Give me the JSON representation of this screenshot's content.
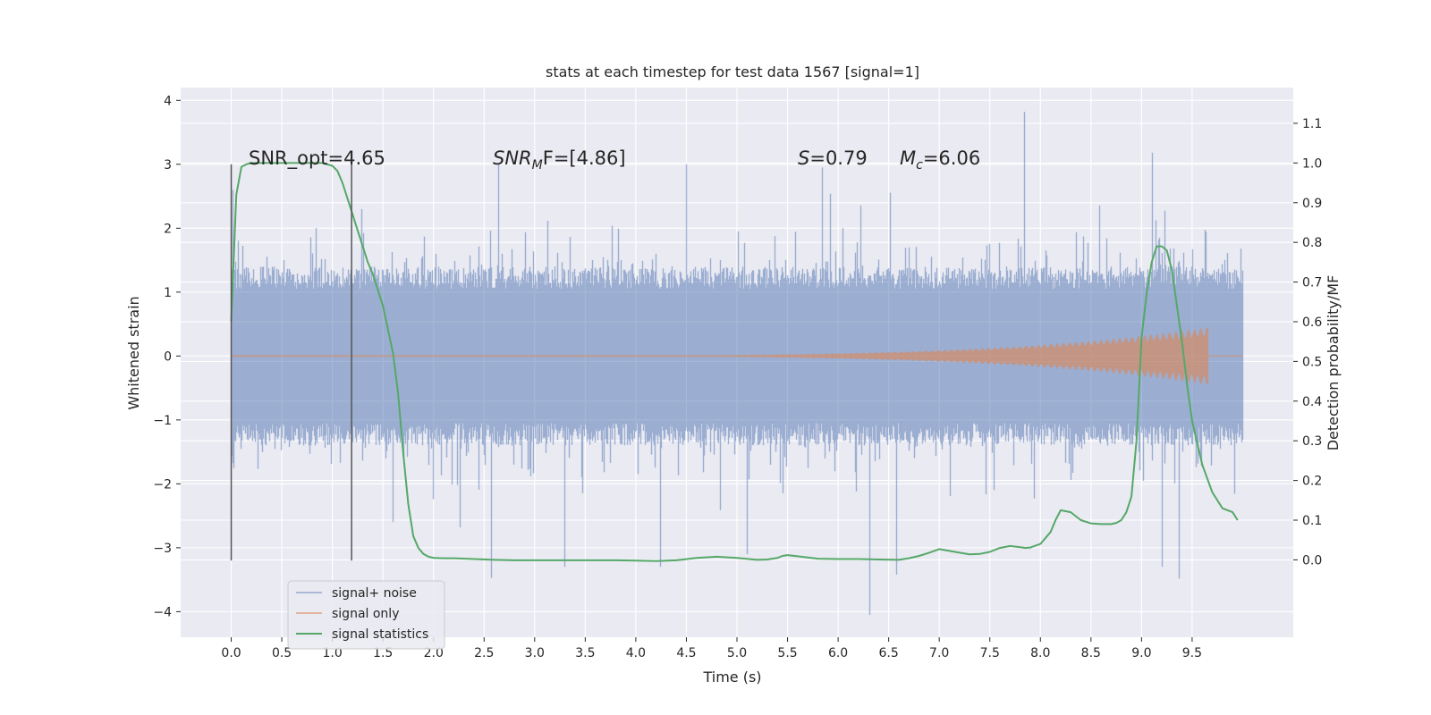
{
  "chart_data": {
    "type": "line",
    "title": "stats at each timestep for test data 1567 [signal=1]",
    "xlabel": "Time (s)",
    "ylabel": "Whitened strain",
    "y2label": "Detection probability/MF",
    "xlim": [
      -0.5,
      10.5
    ],
    "ylim": [
      -4.4,
      4.2
    ],
    "y2lim": [
      -0.195,
      1.19
    ],
    "xticks": [
      "0.0",
      "0.5",
      "1.0",
      "1.5",
      "2.0",
      "2.5",
      "3.0",
      "3.5",
      "4.0",
      "4.5",
      "5.0",
      "5.5",
      "6.0",
      "6.5",
      "7.0",
      "7.5",
      "8.0",
      "8.5",
      "9.0",
      "9.5"
    ],
    "yticks": [
      "4",
      "3",
      "2",
      "1",
      "0",
      "−1",
      "−2",
      "−3",
      "−4"
    ],
    "y2ticks": [
      "1.1",
      "1.0",
      "0.9",
      "0.8",
      "0.7",
      "0.6",
      "0.5",
      "0.4",
      "0.3",
      "0.2",
      "0.1",
      "0.0"
    ],
    "grid": true,
    "legend_placement": "lower-left",
    "annotations": {
      "snr_opt": "SNR_opt=4.65",
      "snr_mf_main": "SNR",
      "snr_mf_sub": "M",
      "snr_mf_rest": "F=[4.86]",
      "s_label": "S",
      "s_value": "=0.79",
      "mc_label": "M",
      "mc_sub": "c",
      "mc_value": "=6.06"
    },
    "vertical_lines": [
      0.0,
      1.19
    ],
    "series": [
      {
        "name": "signal+ noise",
        "color": "#4c72b0",
        "kind": "noise",
        "x_range": [
          0.0,
          10.0
        ],
        "typical_abs": 1.15,
        "notable_peaks": [
          [
            0.01,
            2.6
          ],
          [
            1.29,
            2.3
          ],
          [
            2.64,
            3.0
          ],
          [
            4.5,
            3.0
          ],
          [
            5.84,
            2.95
          ],
          [
            7.84,
            3.82
          ],
          [
            9.1,
            3.18
          ],
          [
            1.6,
            -2.6
          ],
          [
            2.57,
            -3.47
          ],
          [
            3.29,
            -3.3
          ],
          [
            4.24,
            -3.3
          ],
          [
            5.1,
            -3.1
          ],
          [
            6.31,
            -4.05
          ],
          [
            6.57,
            -3.42
          ],
          [
            9.2,
            -3.3
          ],
          [
            9.37,
            -3.48
          ]
        ]
      },
      {
        "name": "signal only",
        "color": "#dd8452",
        "kind": "chirp",
        "x_range": [
          0.0,
          9.65
        ],
        "peak_amplitude": 0.45
      },
      {
        "name": "signal statistics",
        "color": "#55a868",
        "kind": "line",
        "axis": "right",
        "x": [
          0.0,
          0.05,
          0.1,
          0.15,
          0.2,
          0.3,
          0.4,
          0.5,
          0.6,
          0.7,
          0.8,
          0.9,
          1.0,
          1.05,
          1.1,
          1.15,
          1.2,
          1.25,
          1.3,
          1.35,
          1.4,
          1.5,
          1.6,
          1.65,
          1.7,
          1.75,
          1.8,
          1.85,
          1.9,
          1.95,
          2.0,
          2.1,
          2.2,
          2.4,
          2.6,
          2.8,
          3.0,
          3.2,
          3.4,
          3.6,
          3.8,
          4.0,
          4.2,
          4.4,
          4.6,
          4.8,
          5.0,
          5.2,
          5.3,
          5.4,
          5.45,
          5.5,
          5.6,
          5.8,
          6.0,
          6.2,
          6.4,
          6.6,
          6.7,
          6.8,
          6.9,
          7.0,
          7.2,
          7.3,
          7.4,
          7.5,
          7.6,
          7.7,
          7.8,
          7.85,
          7.9,
          8.0,
          8.1,
          8.15,
          8.2,
          8.3,
          8.4,
          8.5,
          8.6,
          8.7,
          8.75,
          8.8,
          8.85,
          8.9,
          8.95,
          9.0,
          9.05,
          9.1,
          9.15,
          9.2,
          9.25,
          9.3,
          9.35,
          9.4,
          9.45,
          9.5,
          9.6,
          9.7,
          9.8,
          9.9,
          9.95
        ],
        "values": [
          0.6,
          0.92,
          0.99,
          0.997,
          1.0,
          1.0,
          1.0,
          1.0,
          1.0,
          1.0,
          1.0,
          1.0,
          0.993,
          0.98,
          0.95,
          0.91,
          0.87,
          0.83,
          0.79,
          0.75,
          0.72,
          0.64,
          0.52,
          0.42,
          0.27,
          0.14,
          0.06,
          0.03,
          0.015,
          0.008,
          0.005,
          0.004,
          0.004,
          0.002,
          0.0,
          -0.001,
          -0.001,
          -0.001,
          -0.001,
          -0.001,
          -0.001,
          -0.002,
          -0.003,
          -0.001,
          0.005,
          0.008,
          0.005,
          0.0,
          0.001,
          0.005,
          0.01,
          0.012,
          0.009,
          0.003,
          0.002,
          0.002,
          0.001,
          0.0,
          0.004,
          0.01,
          0.018,
          0.027,
          0.018,
          0.014,
          0.015,
          0.02,
          0.03,
          0.035,
          0.032,
          0.03,
          0.031,
          0.04,
          0.07,
          0.1,
          0.125,
          0.12,
          0.1,
          0.092,
          0.09,
          0.09,
          0.093,
          0.1,
          0.12,
          0.16,
          0.3,
          0.56,
          0.67,
          0.75,
          0.79,
          0.79,
          0.78,
          0.73,
          0.64,
          0.55,
          0.44,
          0.35,
          0.24,
          0.17,
          0.13,
          0.12,
          0.1
        ]
      }
    ]
  }
}
